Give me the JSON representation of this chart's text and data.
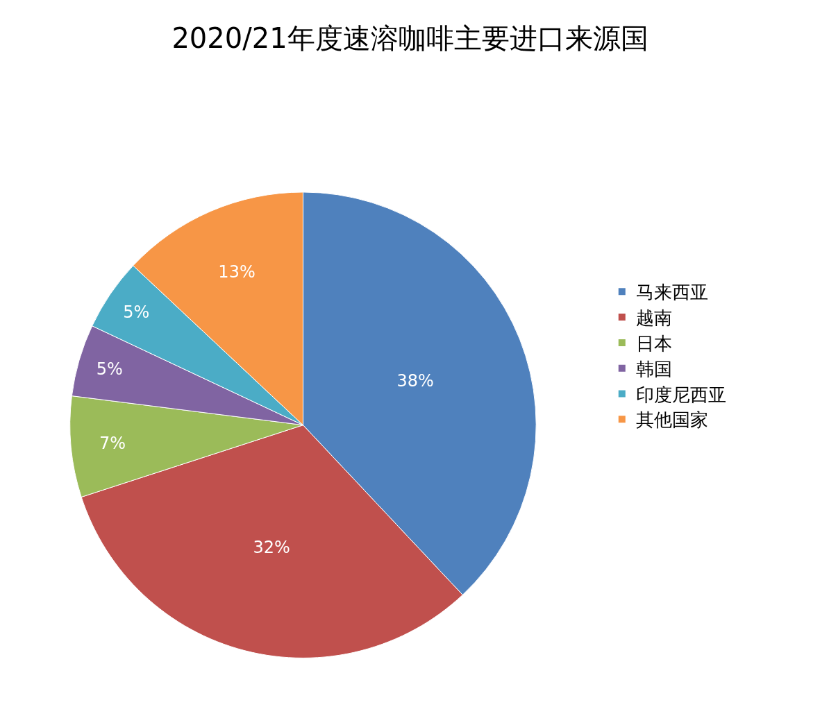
{
  "chart_data": {
    "type": "pie",
    "title": "2020/21年度速溶咖啡主要进口来源国",
    "categories": [
      "马来西亚",
      "越南",
      "日本",
      "韩国",
      "印度尼西亚",
      "其他国家"
    ],
    "values": [
      38,
      32,
      7,
      5,
      5,
      13
    ],
    "colors": [
      "#4f81bd",
      "#c0504d",
      "#9bbb59",
      "#8064a2",
      "#4bacc6",
      "#f79646"
    ],
    "value_labels": [
      "38%",
      "32%",
      "7%",
      "5%",
      "5%",
      "13%"
    ],
    "legend": "right"
  }
}
